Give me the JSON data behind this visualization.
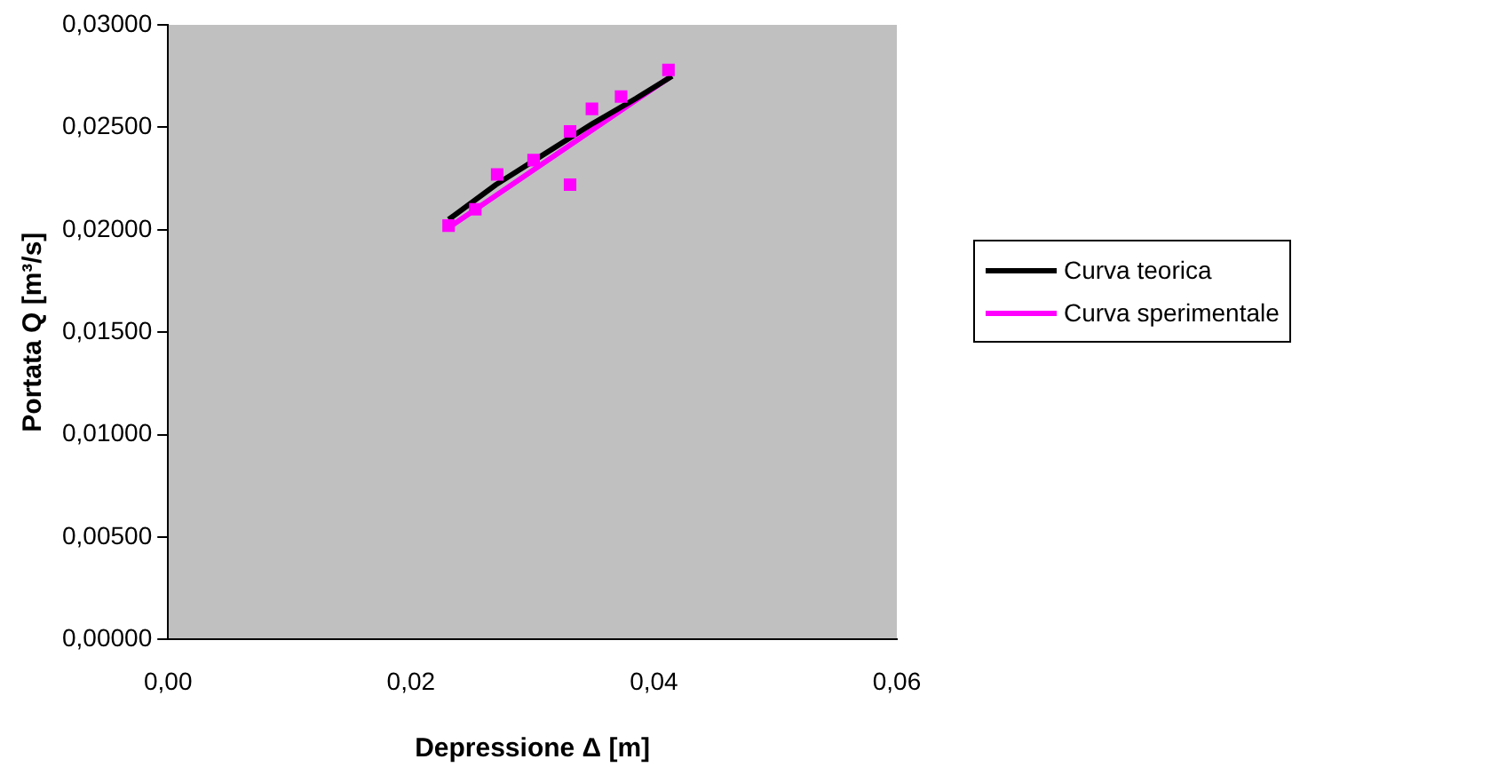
{
  "chart_data": {
    "type": "scatter",
    "xlabel": "Depressione Δ [m]",
    "ylabel": "Portata Q [m³/s]",
    "xlim": [
      0,
      0.06
    ],
    "ylim": [
      0,
      0.03
    ],
    "xticks": [
      {
        "value": 0,
        "label": "0,00"
      },
      {
        "value": 0.02,
        "label": "0,02"
      },
      {
        "value": 0.04,
        "label": "0,04"
      },
      {
        "value": 0.06,
        "label": "0,06"
      }
    ],
    "yticks": [
      {
        "value": 0,
        "label": "0,00000"
      },
      {
        "value": 0.005,
        "label": "0,00500"
      },
      {
        "value": 0.01,
        "label": "0,01000"
      },
      {
        "value": 0.015,
        "label": "0,01500"
      },
      {
        "value": 0.02,
        "label": "0,02000"
      },
      {
        "value": 0.025,
        "label": "0,02500"
      },
      {
        "value": 0.03,
        "label": "0,03000"
      }
    ],
    "grid": false,
    "legend": "right",
    "series": [
      {
        "type": "scatter",
        "color": "#ff00ff",
        "marker": "square",
        "x": [
          0.0231,
          0.0253,
          0.0271,
          0.0301,
          0.0331,
          0.0331,
          0.0349,
          0.0373,
          0.0412
        ],
        "values": [
          0.0202,
          0.021,
          0.0227,
          0.0234,
          0.0222,
          0.0248,
          0.0259,
          0.0265,
          0.0278
        ]
      },
      {
        "type": "line",
        "name": "Curva teorica",
        "color": "#000000",
        "marker": "none",
        "x": [
          0.0231,
          0.027,
          0.031,
          0.035,
          0.0385,
          0.0415
        ],
        "values": [
          0.0205,
          0.0222,
          0.0237,
          0.0252,
          0.0264,
          0.0275
        ]
      },
      {
        "type": "line",
        "name": "Curva sperimentale",
        "color": "#ff00ff",
        "marker": "none",
        "x": [
          0.0231,
          0.0412
        ],
        "values": [
          0.0201,
          0.0274
        ]
      }
    ]
  }
}
